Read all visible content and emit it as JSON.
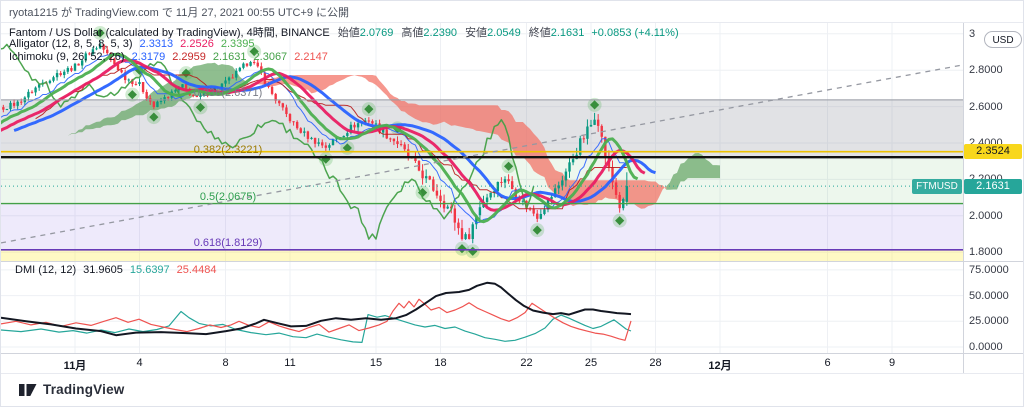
{
  "header": {
    "publish_info": "ryota1215 が TradingView.com で 11月 27, 2021 00:55 UTC+9 に公開"
  },
  "axis": {
    "top_tick": "3",
    "currency_button": "USD"
  },
  "watermark": {
    "brand": "TradingView"
  },
  "legend": {
    "title": "Fantom / US Dollar (calculated by TradingView), 4時間, BINANCE",
    "ohlc": [
      {
        "label": "始値",
        "value": "2.0769"
      },
      {
        "label": "高値",
        "value": "2.2390"
      },
      {
        "label": "安値",
        "value": "2.0549"
      },
      {
        "label": "終値",
        "value": "2.1631"
      }
    ],
    "change": "+0.0853 (+4.11%)",
    "alligator": {
      "name": "Alligator (12, 8, 5, 8, 5, 3)",
      "values": [
        {
          "value": "2.3313",
          "color": "#2962ff"
        },
        {
          "value": "2.2526",
          "color": "#e91e63"
        },
        {
          "value": "2.3395",
          "color": "#4caf50"
        }
      ]
    },
    "ichimoku": {
      "name": "Ichimoku (9, 26, 52, 26)",
      "values": [
        {
          "value": "2.3179",
          "color": "#2962ff"
        },
        {
          "value": "2.2959",
          "color": "#c62828"
        },
        {
          "value": "2.1631",
          "color": "#43a047"
        },
        {
          "value": "2.3067",
          "color": "#43a047"
        },
        {
          "value": "2.2147",
          "color": "#ef5350"
        }
      ]
    },
    "dmi": {
      "name": "DMI (12, 12)",
      "values": [
        {
          "value": "31.9605",
          "color": "#131722"
        },
        {
          "value": "15.6397",
          "color": "#26a69a"
        },
        {
          "value": "25.4484",
          "color": "#ef5350"
        }
      ]
    }
  },
  "chart_data": {
    "type": "candlestick",
    "symbol": "FTMUSD",
    "exchange": "BINANCE",
    "interval": "4時間",
    "last": {
      "open": 2.0769,
      "high": 2.239,
      "low": 2.0549,
      "close": 2.1631,
      "change_abs": "+0.0853",
      "change_pct": "+4.11%"
    },
    "price_axis": {
      "ticks": [
        3.0,
        2.8,
        2.6,
        2.4,
        2.2,
        2.0,
        1.8
      ],
      "labels": [
        "3",
        "2.8000",
        "2.6000",
        "2.4000",
        "2.2000",
        "2.0000",
        "1.8000"
      ],
      "badges": [
        {
          "text": "2.3524",
          "price": 2.3524,
          "bg": "#f8d71c",
          "fg": "#131722"
        },
        {
          "text": "2.1631",
          "price": 2.1631,
          "bg": "#26a69a",
          "fg": "#ffffff"
        }
      ],
      "symbol_badge": "FTMUSD"
    },
    "dmi_axis": {
      "ticks": [
        75,
        50,
        25,
        0
      ],
      "labels": [
        "75.0000",
        "50.0000",
        "25.0000",
        "0.0000"
      ]
    },
    "time_axis": {
      "ticks": [
        {
          "label": "11月",
          "day": 0
        },
        {
          "label": "4",
          "day": 3
        },
        {
          "label": "8",
          "day": 7
        },
        {
          "label": "11",
          "day": 10
        },
        {
          "label": "15",
          "day": 14
        },
        {
          "label": "18",
          "day": 17
        },
        {
          "label": "22",
          "day": 21
        },
        {
          "label": "25",
          "day": 24
        },
        {
          "label": "28",
          "day": 27
        },
        {
          "label": "12月",
          "day": 30
        },
        {
          "label": "6",
          "day": 35
        },
        {
          "label": "9",
          "day": 38
        }
      ]
    },
    "fib_levels": [
      {
        "label": "0.236(2.6371)",
        "price": 2.6371,
        "color": "#787b86",
        "line_color": "#9598a1",
        "line_width": 1
      },
      {
        "label": "0.382(2.3221)",
        "price": 2.3221,
        "color": "#9c7a00",
        "line_color": "#111111",
        "line_width": 2.4
      },
      {
        "label": "0.5(2.0675)",
        "price": 2.0675,
        "color": "#2e9e4f",
        "line_color": "#43a047",
        "line_width": 1.4
      },
      {
        "label": "0.618(1.8129)",
        "price": 1.8129,
        "color": "#673ab7",
        "line_color": "#673ab7",
        "line_width": 1.6
      }
    ],
    "zones": [
      {
        "from": 2.6371,
        "to": 2.3221,
        "color": "rgba(149,152,161,0.28)"
      },
      {
        "from": 2.3221,
        "to": 2.0675,
        "color": "rgba(76,175,80,0.10)"
      },
      {
        "from": 2.0675,
        "to": 1.8129,
        "color": "rgba(118,86,225,0.12)"
      },
      {
        "from": 1.8129,
        "to": 1.72,
        "color": "rgba(255,235,59,0.30)"
      }
    ],
    "horizontal_line": {
      "price": 2.3524,
      "color": "#edc200"
    },
    "current_price": {
      "value": 2.1631,
      "color": "#26a69a"
    },
    "trendline": {
      "from_day": -3.44,
      "from_price": 1.851,
      "to_day": 41.3,
      "to_price": 2.829,
      "color": "#9598a1"
    },
    "bars_total": 191,
    "bars_per_day": 6,
    "bar_of_month_start": 36,
    "price_keypoints": [
      [
        0,
        2.38
      ],
      [
        8,
        2.5
      ],
      [
        14,
        2.58
      ],
      [
        20,
        2.62
      ],
      [
        26,
        2.72
      ],
      [
        31,
        2.78
      ],
      [
        36,
        2.82
      ],
      [
        40,
        2.9
      ],
      [
        43,
        2.94
      ],
      [
        46,
        2.86
      ],
      [
        50,
        2.76
      ],
      [
        54,
        2.72
      ],
      [
        58,
        2.6
      ],
      [
        62,
        2.66
      ],
      [
        66,
        2.71
      ],
      [
        70,
        2.64
      ],
      [
        74,
        2.69
      ],
      [
        78,
        2.73
      ],
      [
        82,
        2.8
      ],
      [
        85,
        2.86
      ],
      [
        88,
        2.78
      ],
      [
        90,
        2.7
      ],
      [
        94,
        2.58
      ],
      [
        98,
        2.48
      ],
      [
        102,
        2.42
      ],
      [
        106,
        2.38
      ],
      [
        110,
        2.44
      ],
      [
        114,
        2.5
      ],
      [
        118,
        2.53
      ],
      [
        122,
        2.46
      ],
      [
        126,
        2.4
      ],
      [
        130,
        2.3
      ],
      [
        134,
        2.2
      ],
      [
        138,
        2.1
      ],
      [
        141,
        2.02
      ],
      [
        143,
        1.93
      ],
      [
        145,
        1.87
      ],
      [
        147,
        1.95
      ],
      [
        149,
        2.06
      ],
      [
        153,
        2.16
      ],
      [
        156,
        2.21
      ],
      [
        159,
        2.12
      ],
      [
        162,
        2.05
      ],
      [
        165,
        2.0
      ],
      [
        168,
        2.08
      ],
      [
        171,
        2.17
      ],
      [
        174,
        2.28
      ],
      [
        177,
        2.4
      ],
      [
        180,
        2.5
      ],
      [
        181,
        2.56
      ],
      [
        182,
        2.53
      ],
      [
        183,
        2.42
      ],
      [
        185,
        2.25
      ],
      [
        187,
        2.12
      ],
      [
        188,
        2.05
      ],
      [
        189,
        2.077
      ],
      [
        190,
        2.1631
      ]
    ],
    "volatility_keypoints": [
      [
        0,
        0.022
      ],
      [
        100,
        0.024
      ],
      [
        128,
        0.034
      ],
      [
        140,
        0.05
      ],
      [
        146,
        0.055
      ],
      [
        152,
        0.04
      ],
      [
        162,
        0.028
      ],
      [
        174,
        0.04
      ],
      [
        182,
        0.052
      ],
      [
        186,
        0.042
      ],
      [
        190,
        0.022
      ]
    ],
    "indicators": {
      "alligator": {
        "jaw": [
          12,
          8
        ],
        "teeth": [
          8,
          5
        ],
        "lips": [
          5,
          3
        ]
      },
      "ichimoku": {
        "tenkan": 9,
        "kijun": 26,
        "senkou_b": 52,
        "displacement": 26
      },
      "fractals": true
    },
    "colors": {
      "up": "#089981",
      "down": "#f23645",
      "kumo_bull": "rgba(106,168,105,0.75)",
      "kumo_bear": "rgba(242,111,99,0.72)",
      "tenkan": "#2962ff",
      "kijun": "#b71c1c",
      "chikou": "#43a047",
      "jaw": "#2962ff",
      "teeth": "#e91e63",
      "lips": "#4caf50",
      "fractal": "#388e3c",
      "fractal_halo": "rgba(76,175,80,0.25)",
      "adx": "#131722",
      "plus_di": "#26a69a",
      "minus_di": "#ef5350",
      "grid": "#eef0f4",
      "separator": "#d1d4dc"
    },
    "dmi_pane": {
      "adx": [
        [
          0,
          28.5
        ],
        [
          25,
          25
        ],
        [
          50,
          22
        ],
        [
          75,
          18
        ],
        [
          100,
          15.5
        ],
        [
          115,
          11.5
        ],
        [
          135,
          14
        ],
        [
          160,
          14.5
        ],
        [
          185,
          13.5
        ],
        [
          205,
          12.5
        ],
        [
          225,
          15.5
        ],
        [
          240,
          18
        ],
        [
          255,
          23
        ],
        [
          263,
          26.5
        ],
        [
          275,
          23.5
        ],
        [
          290,
          20
        ],
        [
          305,
          20.5
        ],
        [
          320,
          25.5
        ],
        [
          335,
          28
        ],
        [
          350,
          26.5
        ],
        [
          365,
          28
        ],
        [
          380,
          26.5
        ],
        [
          395,
          28
        ],
        [
          405,
          31
        ],
        [
          415,
          36.5
        ],
        [
          425,
          43
        ],
        [
          435,
          49.5
        ],
        [
          445,
          52.5
        ],
        [
          458,
          53.5
        ],
        [
          468,
          55.5
        ],
        [
          476,
          59.5
        ],
        [
          486,
          62.5
        ],
        [
          494,
          61.5
        ],
        [
          500,
          58
        ],
        [
          507,
          52
        ],
        [
          515,
          45.5
        ],
        [
          523,
          40
        ],
        [
          532,
          35.5
        ],
        [
          542,
          33.5
        ],
        [
          552,
          32
        ],
        [
          560,
          33
        ],
        [
          568,
          31.5
        ],
        [
          576,
          34
        ],
        [
          584,
          36.5
        ],
        [
          592,
          36.5
        ],
        [
          600,
          35
        ],
        [
          608,
          34
        ],
        [
          616,
          33
        ],
        [
          624,
          32.5
        ],
        [
          630,
          32
        ]
      ],
      "plus_di": [
        [
          0,
          16.5
        ],
        [
          20,
          15
        ],
        [
          40,
          17.5
        ],
        [
          58,
          14.5
        ],
        [
          72,
          16
        ],
        [
          86,
          13.5
        ],
        [
          100,
          16.5
        ],
        [
          114,
          14
        ],
        [
          128,
          17.5
        ],
        [
          142,
          15
        ],
        [
          156,
          17
        ],
        [
          168,
          20.5
        ],
        [
          180,
          34.5
        ],
        [
          188,
          28.5
        ],
        [
          198,
          23
        ],
        [
          210,
          20.5
        ],
        [
          222,
          22
        ],
        [
          235,
          17
        ],
        [
          250,
          14
        ],
        [
          265,
          12
        ],
        [
          278,
          13.5
        ],
        [
          292,
          10
        ],
        [
          305,
          9
        ],
        [
          316,
          12.5
        ],
        [
          328,
          9.5
        ],
        [
          340,
          7
        ],
        [
          352,
          5
        ],
        [
          361,
          4.5
        ],
        [
          367,
          31.5
        ],
        [
          376,
          29
        ],
        [
          384,
          30.5
        ],
        [
          394,
          27.5
        ],
        [
          404,
          24.5
        ],
        [
          414,
          21.5
        ],
        [
          424,
          19.5
        ],
        [
          434,
          21
        ],
        [
          444,
          18
        ],
        [
          454,
          19.5
        ],
        [
          464,
          15.5
        ],
        [
          474,
          12.5
        ],
        [
          484,
          9
        ],
        [
          494,
          7.5
        ],
        [
          504,
          5.5
        ],
        [
          514,
          6.5
        ],
        [
          524,
          9.5
        ],
        [
          534,
          13
        ],
        [
          544,
          18.5
        ],
        [
          552,
          27
        ],
        [
          560,
          31
        ],
        [
          568,
          28
        ],
        [
          576,
          24.5
        ],
        [
          584,
          21
        ],
        [
          592,
          18
        ],
        [
          600,
          20
        ],
        [
          607,
          23.5
        ],
        [
          613,
          26.5
        ],
        [
          619,
          22
        ],
        [
          625,
          17.5
        ],
        [
          630,
          15.6
        ]
      ],
      "minus_di": [
        [
          0,
          22.5
        ],
        [
          15,
          25
        ],
        [
          30,
          21.5
        ],
        [
          45,
          24
        ],
        [
          60,
          20
        ],
        [
          75,
          23.5
        ],
        [
          90,
          21
        ],
        [
          103,
          25
        ],
        [
          115,
          28.5
        ],
        [
          127,
          24
        ],
        [
          138,
          27
        ],
        [
          150,
          22
        ],
        [
          162,
          19.5
        ],
        [
          174,
          17
        ],
        [
          186,
          15
        ],
        [
          198,
          18
        ],
        [
          209,
          21.5
        ],
        [
          220,
          19
        ],
        [
          230,
          21.5
        ],
        [
          238,
          25
        ],
        [
          248,
          21
        ],
        [
          258,
          19
        ],
        [
          268,
          24.5
        ],
        [
          278,
          20.5
        ],
        [
          288,
          17.5
        ],
        [
          298,
          15
        ],
        [
          308,
          19
        ],
        [
          318,
          22
        ],
        [
          328,
          14.5
        ],
        [
          338,
          18
        ],
        [
          348,
          21.5
        ],
        [
          358,
          16
        ],
        [
          368,
          18.5
        ],
        [
          378,
          21.5
        ],
        [
          386,
          25
        ],
        [
          392,
          35
        ],
        [
          398,
          42.5
        ],
        [
          403,
          38
        ],
        [
          408,
          44.5
        ],
        [
          413,
          39
        ],
        [
          418,
          46.5
        ],
        [
          424,
          41.5
        ],
        [
          430,
          36
        ],
        [
          438,
          38.5
        ],
        [
          446,
          33.5
        ],
        [
          454,
          36
        ],
        [
          462,
          39.5
        ],
        [
          468,
          43
        ],
        [
          476,
          38
        ],
        [
          484,
          34.5
        ],
        [
          492,
          31
        ],
        [
          500,
          27.5
        ],
        [
          508,
          25
        ],
        [
          516,
          28.5
        ],
        [
          524,
          33.5
        ],
        [
          531,
          42.5
        ],
        [
          538,
          38
        ],
        [
          546,
          33
        ],
        [
          554,
          28
        ],
        [
          562,
          23.5
        ],
        [
          570,
          20
        ],
        [
          578,
          17.5
        ],
        [
          586,
          15.5
        ],
        [
          594,
          13.5
        ],
        [
          602,
          12.5
        ],
        [
          610,
          10.5
        ],
        [
          618,
          8
        ],
        [
          624,
          6.5
        ],
        [
          630,
          25.4
        ]
      ]
    }
  }
}
